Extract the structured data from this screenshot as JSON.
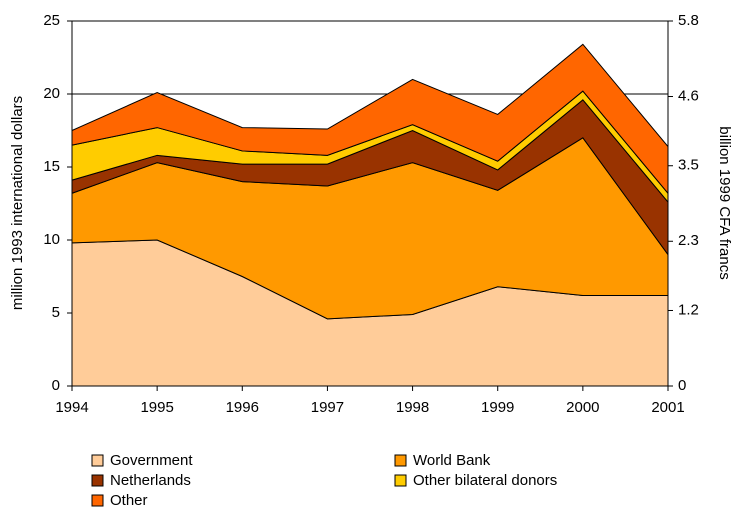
{
  "chart_data": {
    "type": "stacked_area",
    "y_label": "million 1993 international dollars",
    "y2_label": "billion 1999 CFA francs",
    "x": [
      1994,
      1995,
      1996,
      1997,
      1998,
      1999,
      2000,
      2001
    ],
    "xlim": [
      1994,
      2001
    ],
    "xticks": [
      1994,
      1995,
      1996,
      1997,
      1998,
      1999,
      2000,
      2001
    ],
    "ylim": [
      0,
      25
    ],
    "yticks": [
      0,
      5,
      10,
      15,
      20,
      25
    ],
    "y2lim": [
      0,
      5.8
    ],
    "y2ticks": [
      0,
      1.2,
      2.3,
      3.5,
      4.6,
      5.8
    ],
    "grid": true,
    "series": [
      {
        "name": "Government",
        "color": "#ffcc99",
        "values": [
          9.8,
          10.0,
          7.5,
          4.6,
          4.9,
          6.8,
          6.2,
          6.2
        ]
      },
      {
        "name": "World Bank",
        "color": "#ff9900",
        "values": [
          3.4,
          5.3,
          6.5,
          9.1,
          10.4,
          6.6,
          10.8,
          2.8
        ]
      },
      {
        "name": "Netherlands",
        "color": "#993300",
        "values": [
          0.9,
          0.5,
          1.2,
          1.5,
          2.2,
          1.4,
          2.6,
          3.6
        ]
      },
      {
        "name": "Other bilateral donors",
        "color": "#ffcc00",
        "values": [
          2.4,
          1.9,
          0.9,
          0.6,
          0.4,
          0.6,
          0.6,
          0.6
        ]
      },
      {
        "name": "Other",
        "color": "#ff6600",
        "values": [
          1.0,
          2.4,
          1.6,
          1.8,
          3.1,
          3.2,
          3.2,
          3.2
        ]
      }
    ]
  }
}
